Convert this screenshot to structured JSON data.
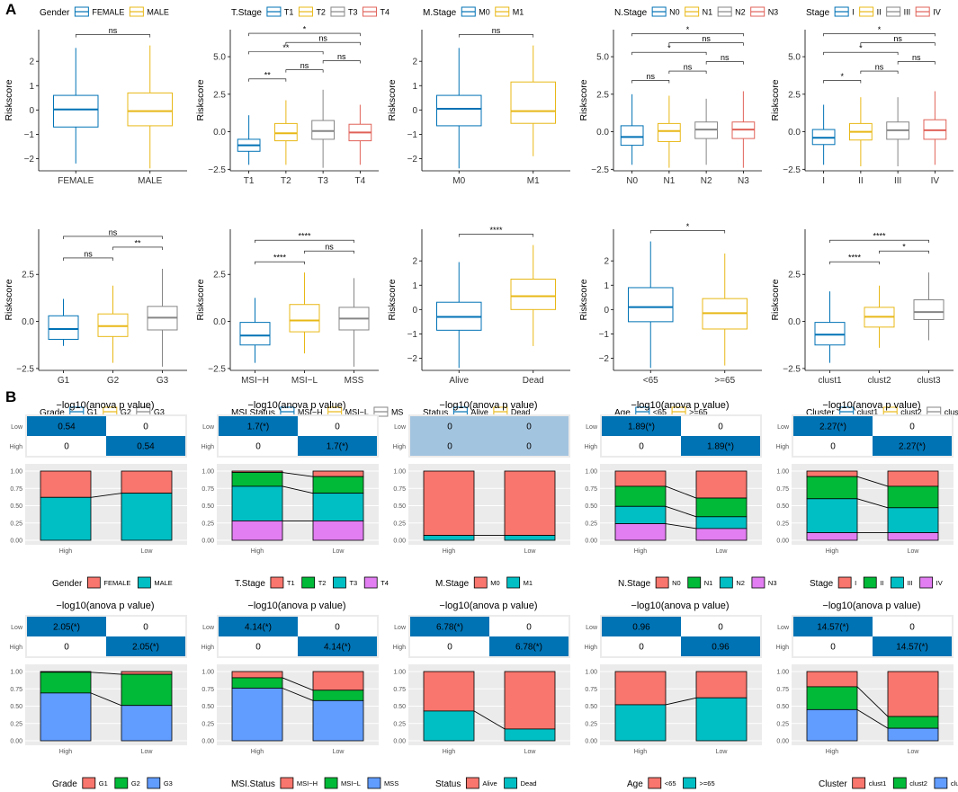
{
  "figure": {
    "panel_a_label": "A",
    "panel_b_label": "B",
    "y_axis_label": "Riskscore",
    "heat_title": "−log10(anova p value)",
    "heat_row_labels": [
      "Low",
      "High"
    ],
    "bar_y_ticks": [
      "1.00",
      "0.75",
      "0.50",
      "0.25",
      "0.00"
    ],
    "bar_x_labels": [
      "High",
      "Low"
    ]
  },
  "colors": {
    "blue": "#0072B5",
    "yellow": "#E8B817",
    "grey": "#868686",
    "red": "#E06259",
    "heat_blue": "#0073B4",
    "heat_light": "#A3C4DF",
    "bar_red": "#F8766D",
    "bar_green": "#00BA38",
    "bar_teal": "#00BFC4",
    "bar_purple": "#E27EF2",
    "bar_blue": "#619CFF",
    "panel_bg": "#EBEBEB"
  },
  "chart_data": [
    {
      "type": "boxplot",
      "panel": "A1",
      "legend_title": "Gender",
      "categories": [
        "FEMALE",
        "MALE"
      ],
      "colors": [
        "blue",
        "yellow"
      ],
      "ylim": [
        -2.5,
        3.3
      ],
      "yticks": [
        -2,
        -1,
        0,
        1,
        2
      ],
      "boxes": [
        {
          "min": -2.2,
          "q1": -0.7,
          "median": 0.02,
          "q3": 0.6,
          "max": 2.55
        },
        {
          "min": -2.4,
          "q1": -0.65,
          "median": -0.05,
          "q3": 0.7,
          "max": 2.65
        }
      ],
      "comparisons": [
        {
          "from": 0,
          "to": 1,
          "label": "ns"
        }
      ]
    },
    {
      "type": "boxplot",
      "panel": "A2",
      "legend_title": "T.Stage",
      "categories": [
        "T1",
        "T2",
        "T3",
        "T4"
      ],
      "colors": [
        "blue",
        "yellow",
        "grey",
        "red"
      ],
      "ylim": [
        -2.6,
        6.8
      ],
      "yticks": [
        -2.5,
        0.0,
        2.5,
        5.0
      ],
      "boxes": [
        {
          "min": -2.2,
          "q1": -1.3,
          "median": -0.9,
          "q3": -0.5,
          "max": 1.1
        },
        {
          "min": -2.2,
          "q1": -0.6,
          "median": -0.1,
          "q3": 0.55,
          "max": 2.1
        },
        {
          "min": -2.4,
          "q1": -0.5,
          "median": 0.05,
          "q3": 0.75,
          "max": 2.8
        },
        {
          "min": -2.2,
          "q1": -0.6,
          "median": -0.05,
          "q3": 0.5,
          "max": 1.8
        }
      ],
      "comparisons": [
        {
          "from": 0,
          "to": 1,
          "label": "**"
        },
        {
          "from": 0,
          "to": 2,
          "label": "**"
        },
        {
          "from": 0,
          "to": 3,
          "label": "*"
        },
        {
          "from": 1,
          "to": 2,
          "label": "ns"
        },
        {
          "from": 1,
          "to": 3,
          "label": "ns"
        },
        {
          "from": 2,
          "to": 3,
          "label": "ns"
        }
      ]
    },
    {
      "type": "boxplot",
      "panel": "A3",
      "legend_title": "M.Stage",
      "categories": [
        "M0",
        "M1"
      ],
      "colors": [
        "blue",
        "yellow"
      ],
      "ylim": [
        -2.5,
        3.3
      ],
      "yticks": [
        -2,
        -1,
        0,
        1,
        2
      ],
      "boxes": [
        {
          "min": -2.4,
          "q1": -0.65,
          "median": 0.05,
          "q3": 0.6,
          "max": 2.55
        },
        {
          "min": -1.9,
          "q1": -0.55,
          "median": -0.05,
          "q3": 1.15,
          "max": 2.65
        }
      ],
      "comparisons": [
        {
          "from": 0,
          "to": 1,
          "label": "ns"
        }
      ]
    },
    {
      "type": "boxplot",
      "panel": "A4",
      "legend_title": "N.Stage",
      "categories": [
        "N0",
        "N1",
        "N2",
        "N3"
      ],
      "colors": [
        "blue",
        "yellow",
        "grey",
        "red"
      ],
      "ylim": [
        -2.6,
        6.8
      ],
      "yticks": [
        -2.5,
        0.0,
        2.5,
        5.0
      ],
      "boxes": [
        {
          "min": -2.2,
          "q1": -0.9,
          "median": -0.35,
          "q3": 0.4,
          "max": 2.5
        },
        {
          "min": -2.4,
          "q1": -0.65,
          "median": 0.05,
          "q3": 0.55,
          "max": 2.4
        },
        {
          "min": -2.2,
          "q1": -0.45,
          "median": 0.15,
          "q3": 0.65,
          "max": 2.2
        },
        {
          "min": -2.4,
          "q1": -0.45,
          "median": 0.15,
          "q3": 0.65,
          "max": 2.7
        }
      ],
      "comparisons": [
        {
          "from": 0,
          "to": 1,
          "label": "ns"
        },
        {
          "from": 0,
          "to": 2,
          "label": "*"
        },
        {
          "from": 0,
          "to": 3,
          "label": "*"
        },
        {
          "from": 1,
          "to": 2,
          "label": "ns"
        },
        {
          "from": 1,
          "to": 3,
          "label": "ns"
        },
        {
          "from": 2,
          "to": 3,
          "label": "ns"
        }
      ]
    },
    {
      "type": "boxplot",
      "panel": "A5",
      "legend_title": "Stage",
      "categories": [
        "I",
        "II",
        "III",
        "IV"
      ],
      "colors": [
        "blue",
        "yellow",
        "grey",
        "red"
      ],
      "ylim": [
        -2.6,
        6.8
      ],
      "yticks": [
        -2.5,
        0.0,
        2.5,
        5.0
      ],
      "boxes": [
        {
          "min": -2.2,
          "q1": -0.85,
          "median": -0.4,
          "q3": 0.15,
          "max": 1.8
        },
        {
          "min": -2.3,
          "q1": -0.55,
          "median": 0.0,
          "q3": 0.55,
          "max": 2.3
        },
        {
          "min": -2.3,
          "q1": -0.5,
          "median": 0.1,
          "q3": 0.65,
          "max": 2.3
        },
        {
          "min": -2.2,
          "q1": -0.5,
          "median": 0.1,
          "q3": 0.8,
          "max": 2.7
        }
      ],
      "comparisons": [
        {
          "from": 0,
          "to": 1,
          "label": "*"
        },
        {
          "from": 0,
          "to": 2,
          "label": "*"
        },
        {
          "from": 0,
          "to": 3,
          "label": "*"
        },
        {
          "from": 1,
          "to": 2,
          "label": "ns"
        },
        {
          "from": 1,
          "to": 3,
          "label": "ns"
        },
        {
          "from": 2,
          "to": 3,
          "label": "ns"
        }
      ]
    },
    {
      "type": "boxplot",
      "panel": "A6",
      "legend_title": "Grade",
      "categories": [
        "G1",
        "G2",
        "G3"
      ],
      "colors": [
        "blue",
        "yellow",
        "grey"
      ],
      "ylim": [
        -2.6,
        4.9
      ],
      "yticks": [
        -2.5,
        0.0,
        2.5
      ],
      "boxes": [
        {
          "min": -1.3,
          "q1": -0.95,
          "median": -0.4,
          "q3": 0.3,
          "max": 1.2
        },
        {
          "min": -2.2,
          "q1": -0.8,
          "median": -0.25,
          "q3": 0.4,
          "max": 1.9
        },
        {
          "min": -2.4,
          "q1": -0.45,
          "median": 0.2,
          "q3": 0.8,
          "max": 2.8
        }
      ],
      "comparisons": [
        {
          "from": 0,
          "to": 1,
          "label": "ns"
        },
        {
          "from": 0,
          "to": 2,
          "label": "ns"
        },
        {
          "from": 1,
          "to": 2,
          "label": "**"
        }
      ]
    },
    {
      "type": "boxplot",
      "panel": "A7",
      "legend_title": "MSI.Status",
      "categories": [
        "MSI−H",
        "MSI−L",
        "MSS"
      ],
      "legend_labels": [
        "MSI−H",
        "MSI−L",
        "MS"
      ],
      "colors": [
        "blue",
        "yellow",
        "grey"
      ],
      "ylim": [
        -2.6,
        4.9
      ],
      "yticks": [
        -2.5,
        0.0,
        2.5
      ],
      "boxes": [
        {
          "min": -2.2,
          "q1": -1.25,
          "median": -0.75,
          "q3": -0.05,
          "max": 1.25
        },
        {
          "min": -1.7,
          "q1": -0.55,
          "median": 0.05,
          "q3": 0.9,
          "max": 2.6
        },
        {
          "min": -2.4,
          "q1": -0.45,
          "median": 0.15,
          "q3": 0.75,
          "max": 2.3
        }
      ],
      "comparisons": [
        {
          "from": 0,
          "to": 1,
          "label": "****"
        },
        {
          "from": 0,
          "to": 2,
          "label": "****"
        },
        {
          "from": 1,
          "to": 2,
          "label": "ns"
        }
      ]
    },
    {
      "type": "boxplot",
      "panel": "A8",
      "legend_title": "Status",
      "categories": [
        "Alive",
        "Dead"
      ],
      "colors": [
        "blue",
        "yellow"
      ],
      "ylim": [
        -2.5,
        3.3
      ],
      "yticks": [
        -2,
        -1,
        0,
        1,
        2
      ],
      "boxes": [
        {
          "min": -2.4,
          "q1": -0.85,
          "median": -0.3,
          "q3": 0.3,
          "max": 1.95
        },
        {
          "min": -1.5,
          "q1": 0.0,
          "median": 0.55,
          "q3": 1.25,
          "max": 2.65
        }
      ],
      "comparisons": [
        {
          "from": 0,
          "to": 1,
          "label": "****"
        }
      ]
    },
    {
      "type": "boxplot",
      "panel": "A9",
      "legend_title": "Age",
      "categories": [
        "<65",
        ">=65"
      ],
      "colors": [
        "blue",
        "yellow"
      ],
      "ylim": [
        -2.5,
        3.3
      ],
      "yticks": [
        -2,
        -1,
        0,
        1,
        2
      ],
      "boxes": [
        {
          "min": -2.4,
          "q1": -0.5,
          "median": 0.1,
          "q3": 0.9,
          "max": 2.8
        },
        {
          "min": -2.3,
          "q1": -0.8,
          "median": -0.15,
          "q3": 0.45,
          "max": 2.3
        }
      ],
      "comparisons": [
        {
          "from": 0,
          "to": 1,
          "label": "*"
        }
      ]
    },
    {
      "type": "boxplot",
      "panel": "A10",
      "legend_title": "Cluster",
      "categories": [
        "clust1",
        "clust2",
        "clust3"
      ],
      "colors": [
        "blue",
        "yellow",
        "grey"
      ],
      "ylim": [
        -2.6,
        4.9
      ],
      "yticks": [
        -2.5,
        0.0,
        2.5
      ],
      "boxes": [
        {
          "min": -2.2,
          "q1": -1.25,
          "median": -0.7,
          "q3": -0.05,
          "max": 1.6
        },
        {
          "min": -1.4,
          "q1": -0.3,
          "median": 0.25,
          "q3": 0.75,
          "max": 1.9
        },
        {
          "min": -1.0,
          "q1": 0.1,
          "median": 0.5,
          "q3": 1.15,
          "max": 2.6
        }
      ],
      "comparisons": [
        {
          "from": 0,
          "to": 1,
          "label": "****"
        },
        {
          "from": 0,
          "to": 2,
          "label": "****"
        },
        {
          "from": 1,
          "to": 2,
          "label": "*"
        }
      ]
    },
    {
      "type": "stacked_bar",
      "panel": "B1",
      "legend_title": "Gender",
      "heat_value": "0.54",
      "heat_light": false,
      "legend": [
        {
          "label": "FEMALE",
          "color": "bar_red"
        },
        {
          "label": "MALE",
          "color": "bar_teal"
        }
      ],
      "stacks": {
        "High": [
          0.38,
          0.62
        ],
        "Low": [
          0.32,
          0.68
        ]
      }
    },
    {
      "type": "stacked_bar",
      "panel": "B2",
      "legend_title": "T.Stage",
      "heat_value": "1.7(*)",
      "heat_light": false,
      "legend": [
        {
          "label": "T1",
          "color": "bar_red"
        },
        {
          "label": "T2",
          "color": "bar_green"
        },
        {
          "label": "T3",
          "color": "bar_teal"
        },
        {
          "label": "T4",
          "color": "bar_purple"
        }
      ],
      "stacks": {
        "High": [
          0.02,
          0.2,
          0.5,
          0.28
        ],
        "Low": [
          0.08,
          0.24,
          0.4,
          0.28
        ]
      }
    },
    {
      "type": "stacked_bar",
      "panel": "B3",
      "legend_title": "M.Stage",
      "heat_value": "0",
      "heat_light": true,
      "legend": [
        {
          "label": "M0",
          "color": "bar_red"
        },
        {
          "label": "M1",
          "color": "bar_teal"
        }
      ],
      "stacks": {
        "High": [
          0.93,
          0.07
        ],
        "Low": [
          0.93,
          0.07
        ]
      }
    },
    {
      "type": "stacked_bar",
      "panel": "B4",
      "legend_title": "N.Stage",
      "heat_value": "1.89(*)",
      "heat_light": false,
      "legend": [
        {
          "label": "N0",
          "color": "bar_red"
        },
        {
          "label": "N1",
          "color": "bar_green"
        },
        {
          "label": "N2",
          "color": "bar_teal"
        },
        {
          "label": "N3",
          "color": "bar_purple"
        }
      ],
      "stacks": {
        "High": [
          0.22,
          0.29,
          0.25,
          0.24
        ],
        "Low": [
          0.39,
          0.27,
          0.17,
          0.17
        ]
      }
    },
    {
      "type": "stacked_bar",
      "panel": "B5",
      "legend_title": "Stage",
      "heat_value": "2.27(*)",
      "heat_light": false,
      "legend": [
        {
          "label": "I",
          "color": "bar_red"
        },
        {
          "label": "II",
          "color": "bar_green"
        },
        {
          "label": "III",
          "color": "bar_teal"
        },
        {
          "label": "IV",
          "color": "bar_purple"
        }
      ],
      "stacks": {
        "High": [
          0.08,
          0.32,
          0.49,
          0.11
        ],
        "Low": [
          0.22,
          0.31,
          0.36,
          0.11
        ]
      }
    },
    {
      "type": "stacked_bar",
      "panel": "B6",
      "legend_title": "Grade",
      "heat_value": "2.05(*)",
      "heat_light": false,
      "legend": [
        {
          "label": "G1",
          "color": "bar_red"
        },
        {
          "label": "G2",
          "color": "bar_green"
        },
        {
          "label": "G3",
          "color": "bar_blue"
        }
      ],
      "stacks": {
        "High": [
          0.01,
          0.3,
          0.69
        ],
        "Low": [
          0.04,
          0.45,
          0.51
        ]
      }
    },
    {
      "type": "stacked_bar",
      "panel": "B7",
      "legend_title": "MSI.Status",
      "heat_value": "4.14(*)",
      "heat_light": false,
      "legend": [
        {
          "label": "MSI−H",
          "color": "bar_red"
        },
        {
          "label": "MSI−L",
          "color": "bar_green"
        },
        {
          "label": "MSS",
          "color": "bar_blue"
        }
      ],
      "stacks": {
        "High": [
          0.09,
          0.15,
          0.76
        ],
        "Low": [
          0.27,
          0.15,
          0.58
        ]
      }
    },
    {
      "type": "stacked_bar",
      "panel": "B8",
      "legend_title": "Status",
      "heat_value": "6.78(*)",
      "heat_light": false,
      "legend": [
        {
          "label": "Alive",
          "color": "bar_red"
        },
        {
          "label": "Dead",
          "color": "bar_teal"
        }
      ],
      "stacks": {
        "High": [
          0.57,
          0.43
        ],
        "Low": [
          0.83,
          0.17
        ]
      }
    },
    {
      "type": "stacked_bar",
      "panel": "B9",
      "legend_title": "Age",
      "heat_value": "0.96",
      "heat_light": false,
      "legend": [
        {
          "label": "<65",
          "color": "bar_red"
        },
        {
          "label": ">=65",
          "color": "bar_teal"
        }
      ],
      "stacks": {
        "High": [
          0.48,
          0.52
        ],
        "Low": [
          0.38,
          0.62
        ]
      }
    },
    {
      "type": "stacked_bar",
      "panel": "B10",
      "legend_title": "Cluster",
      "heat_value": "14.57(*)",
      "heat_light": false,
      "legend": [
        {
          "label": "clust1",
          "color": "bar_red"
        },
        {
          "label": "clust2",
          "color": "bar_green"
        },
        {
          "label": "clust3",
          "color": "bar_blue"
        }
      ],
      "stacks": {
        "High": [
          0.22,
          0.33,
          0.45
        ],
        "Low": [
          0.65,
          0.17,
          0.18
        ]
      }
    }
  ]
}
